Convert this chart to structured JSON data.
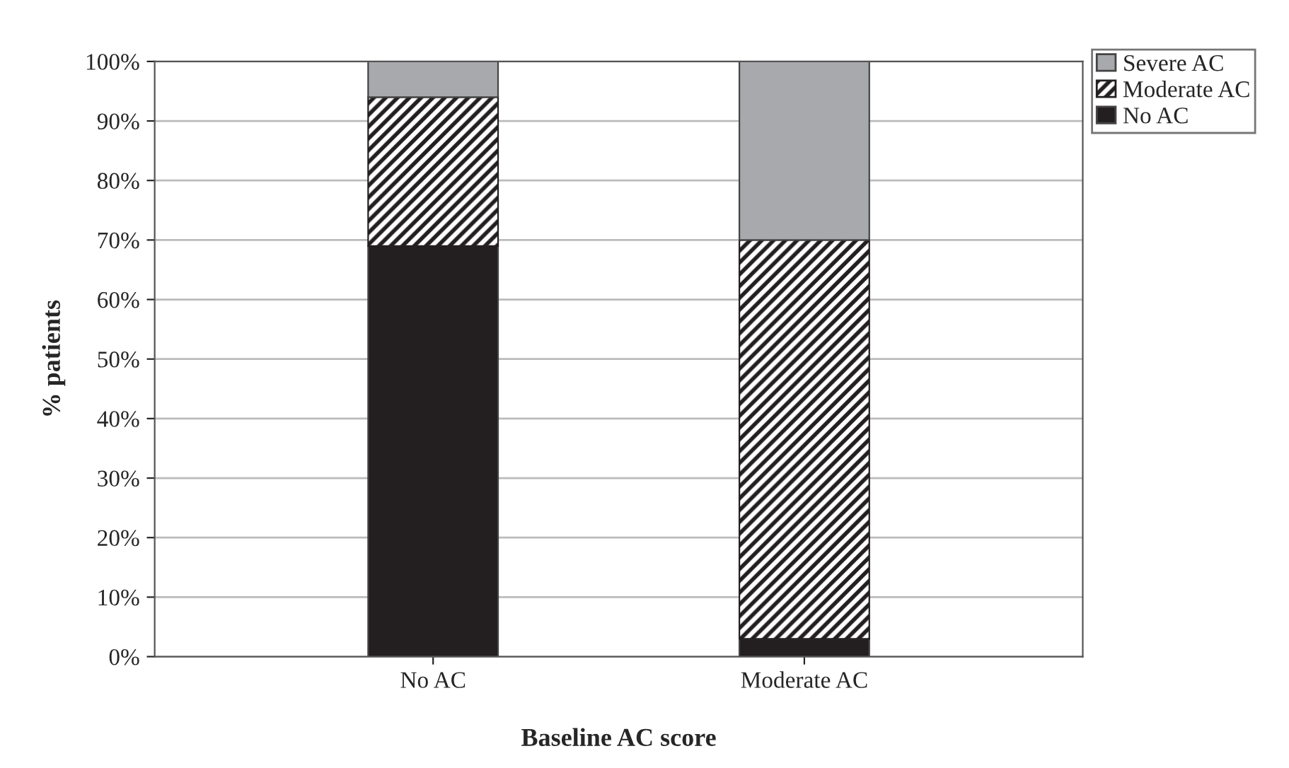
{
  "chart_data": {
    "type": "bar",
    "stacked": true,
    "xlabel": "Baseline AC score",
    "ylabel": "% patients",
    "categories": [
      "No AC",
      "Moderate AC"
    ],
    "series": [
      {
        "name": "No AC",
        "color": "#231f20",
        "values": [
          69,
          3
        ]
      },
      {
        "name": "Moderate AC",
        "color": "#231f20",
        "values": [
          25,
          67
        ]
      },
      {
        "name": "Severe AC",
        "color": "#a7a9ac",
        "values": [
          6,
          30
        ]
      }
    ],
    "ylim": [
      0,
      100
    ],
    "yticks": [
      {
        "value": 0,
        "label": "0%"
      },
      {
        "value": 10,
        "label": "10%"
      },
      {
        "value": 20,
        "label": "20%"
      },
      {
        "value": 30,
        "label": "30%"
      },
      {
        "value": 40,
        "label": "40%"
      },
      {
        "value": 50,
        "label": "50%"
      },
      {
        "value": 60,
        "label": "60%"
      },
      {
        "value": 70,
        "label": "70%"
      },
      {
        "value": 80,
        "label": "80%"
      },
      {
        "value": 90,
        "label": "90%"
      },
      {
        "value": 100,
        "label": "100%"
      }
    ],
    "grid": "y",
    "legend": "top right"
  }
}
